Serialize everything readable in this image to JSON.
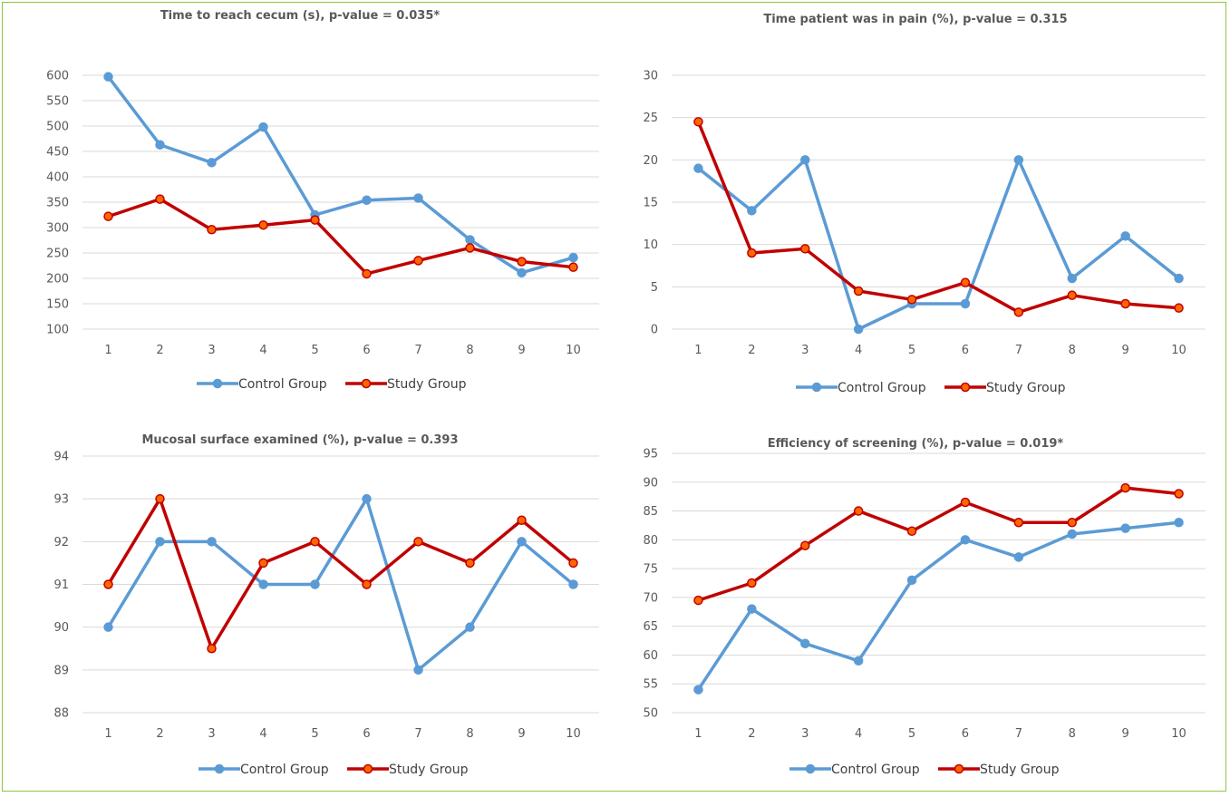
{
  "colors": {
    "control": "#5b9bd5",
    "study": "#c00000",
    "study_marker_fill": "#ff6600",
    "border": "#8cc63f"
  },
  "chart_data": [
    {
      "type": "line",
      "title": "Time to reach cecum (s), p-value = 0.035*",
      "categories": [
        "1",
        "2",
        "3",
        "4",
        "5",
        "6",
        "7",
        "8",
        "9",
        "10"
      ],
      "ylim": [
        100,
        600
      ],
      "yticks": [
        "100",
        "150",
        "200",
        "250",
        "300",
        "350",
        "400",
        "450",
        "500",
        "550",
        "600"
      ],
      "grid": true,
      "legend_position": "bottom",
      "series": [
        {
          "name": "Control Group",
          "values": [
            597,
            463,
            428,
            498,
            325,
            354,
            358,
            276,
            211,
            241
          ]
        },
        {
          "name": "Study Group",
          "values": [
            322,
            356,
            296,
            305,
            315,
            209,
            235,
            260,
            233,
            222
          ]
        }
      ]
    },
    {
      "type": "line",
      "title": "Time patient was in pain (%), p-value = 0.315",
      "categories": [
        "1",
        "2",
        "3",
        "4",
        "5",
        "6",
        "7",
        "8",
        "9",
        "10"
      ],
      "ylim": [
        0,
        30
      ],
      "yticks": [
        "0",
        "5",
        "10",
        "15",
        "20",
        "25",
        "30"
      ],
      "grid": true,
      "legend_position": "bottom",
      "series": [
        {
          "name": "Control Group",
          "values": [
            19,
            14,
            20,
            0,
            3,
            3,
            20,
            6,
            11,
            6
          ]
        },
        {
          "name": "Study Group",
          "values": [
            24.5,
            9,
            9.5,
            4.5,
            3.5,
            5.5,
            2,
            4,
            3,
            2.5
          ]
        }
      ]
    },
    {
      "type": "line",
      "title": "Mucosal surface examined (%), p-value = 0.393",
      "categories": [
        "1",
        "2",
        "3",
        "4",
        "5",
        "6",
        "7",
        "8",
        "9",
        "10"
      ],
      "ylim": [
        88,
        94
      ],
      "yticks": [
        "88",
        "89",
        "90",
        "91",
        "92",
        "93",
        "94"
      ],
      "grid": true,
      "legend_position": "bottom",
      "series": [
        {
          "name": "Control Group",
          "values": [
            90,
            92,
            92,
            91,
            91,
            93,
            89,
            90,
            92,
            91
          ]
        },
        {
          "name": "Study Group",
          "values": [
            91,
            93,
            89.5,
            91.5,
            92,
            91,
            92,
            91.5,
            92.5,
            91.5
          ]
        }
      ]
    },
    {
      "type": "line",
      "title": "Efficiency of screening (%), p-value = 0.019*",
      "categories": [
        "1",
        "2",
        "3",
        "4",
        "5",
        "6",
        "7",
        "8",
        "9",
        "10"
      ],
      "ylim": [
        50,
        95
      ],
      "yticks": [
        "50",
        "55",
        "60",
        "65",
        "70",
        "75",
        "80",
        "85",
        "90",
        "95"
      ],
      "grid": true,
      "legend_position": "bottom",
      "series": [
        {
          "name": "Control Group",
          "values": [
            54,
            68,
            62,
            59,
            73,
            80,
            77,
            81,
            82,
            83
          ]
        },
        {
          "name": "Study Group",
          "values": [
            69.5,
            72.5,
            79,
            85,
            81.5,
            86.5,
            83,
            83,
            89,
            88
          ]
        }
      ]
    }
  ]
}
